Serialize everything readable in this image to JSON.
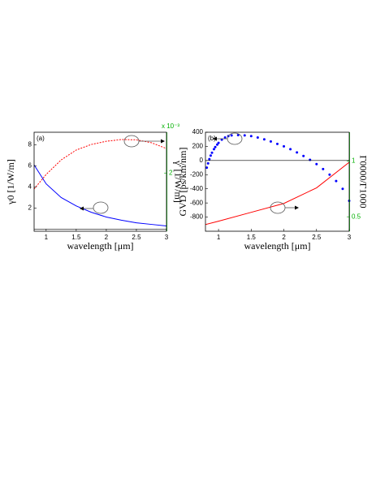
{
  "chart_data": [
    {
      "type": "line",
      "label": "(a)",
      "xlabel": "wavelength [μm]",
      "ylabel": "γ0 [1/W/m]",
      "y2label": "γ' [1/W/m]",
      "y2_multiplier": "x 10⁻³",
      "xlim": [
        0.8,
        3
      ],
      "xticks": [
        1,
        1.5,
        2,
        2.5,
        3
      ],
      "ylim": [
        -0.2,
        9.2
      ],
      "yticks": [
        2,
        4,
        6,
        8
      ],
      "y2lim": [
        0,
        3.4
      ],
      "y2ticks": [
        2
      ],
      "y2_color": "#00b000",
      "series": [
        {
          "color": "#0000ff",
          "style": "solid",
          "x": [
            0.8,
            1,
            1.25,
            1.5,
            1.75,
            2,
            2.25,
            2.5,
            2.75,
            3
          ],
          "values": [
            6.1,
            4.3,
            3.0,
            2.2,
            1.6,
            1.15,
            0.85,
            0.6,
            0.45,
            0.3
          ]
        },
        {
          "color": "#ff0000",
          "style": "dashed",
          "axis": "y2",
          "x": [
            0.8,
            1,
            1.25,
            1.5,
            1.75,
            2,
            2.25,
            2.5,
            2.75,
            3
          ],
          "values": [
            1.45,
            1.95,
            2.45,
            2.79,
            2.98,
            3.09,
            3.15,
            3.14,
            3.04,
            2.84
          ]
        }
      ]
    },
    {
      "type": "line",
      "label": "(b)",
      "xlabel": "wavelength [μm]",
      "ylabel": "GVD [ps/km/nm]",
      "y2label": "Γ0000/Γ1000",
      "xlim": [
        0.8,
        3
      ],
      "xticks": [
        1,
        1.5,
        2,
        2.5,
        3
      ],
      "ylim": [
        -1000,
        400
      ],
      "yticks": [
        -800,
        -600,
        -400,
        -200,
        0,
        200,
        400
      ],
      "y2lim": [
        0.37,
        1.26
      ],
      "y2ticks": [
        0.5,
        1
      ],
      "y2_color": "#00b000",
      "series": [
        {
          "color": "#0000ff",
          "style": "dots",
          "x": [
            0.82,
            0.84,
            0.86,
            0.88,
            0.9,
            0.93,
            0.95,
            0.98,
            1,
            1.05,
            1.1,
            1.15,
            1.2,
            1.3,
            1.4,
            1.5,
            1.6,
            1.7,
            1.8,
            1.9,
            2,
            2.1,
            2.2,
            2.3,
            2.4,
            2.5,
            2.6,
            2.7,
            2.8,
            2.9,
            3
          ],
          "values": [
            -100,
            -40,
            20,
            70,
            110,
            160,
            190,
            225,
            250,
            295,
            325,
            345,
            355,
            360,
            355,
            345,
            325,
            300,
            270,
            235,
            200,
            160,
            115,
            65,
            10,
            -50,
            -120,
            -200,
            -290,
            -400,
            -570
          ]
        },
        {
          "color": "#ff0000",
          "style": "solid",
          "axis": "y2",
          "x": [
            0.8,
            1,
            1.5,
            2,
            2.5,
            3
          ],
          "values": [
            0.43,
            0.46,
            0.54,
            0.62,
            0.76,
            0.99
          ]
        }
      ]
    }
  ]
}
